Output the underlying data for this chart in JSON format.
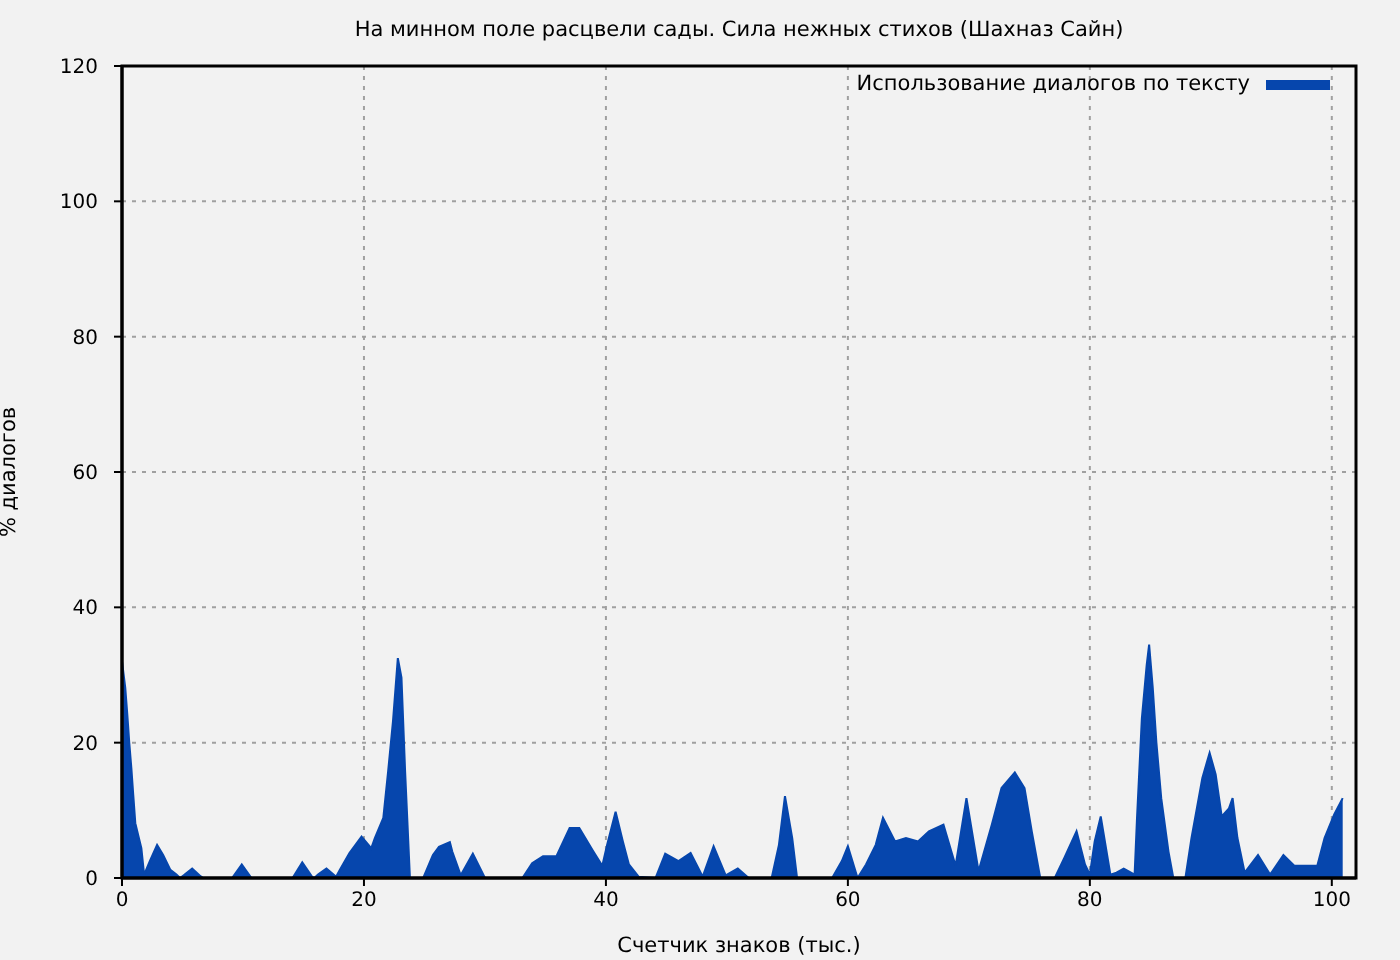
{
  "chart_data": {
    "type": "area",
    "title": "На минном поле расцвели сады. Сила нежных стихов (Шахназ Сайн)",
    "xlabel": "Счетчик знаков (тыс.)",
    "ylabel": "% диалогов",
    "x": [
      0,
      0.27,
      0.44,
      0.6,
      0.77,
      0.93,
      1.1,
      1.37,
      1.6,
      1.8,
      1.9,
      2.3,
      2.9,
      3.4,
      4.0,
      4.5,
      4.8,
      5.1,
      5.8,
      6.4,
      6.7,
      9.1,
      9.9,
      10.7,
      14.1,
      14.9,
      15.7,
      15.9,
      16.2,
      16.9,
      17.7,
      18,
      18.8,
      19.8,
      20.6,
      20.9,
      21.6,
      22,
      22.4,
      22.8,
      23.1,
      23.4,
      23.6,
      23.8,
      24.9,
      25.7,
      26.2,
      27.1,
      27.3,
      28,
      29,
      30,
      33.1,
      33.9,
      34.8,
      35.9,
      37,
      37.8,
      38.9,
      39.7,
      40.1,
      40.8,
      41.4,
      41.9,
      42.7,
      44.1,
      44.9,
      46,
      47,
      48,
      48.9,
      49.9,
      50.9,
      51.8,
      53.7,
      54.3,
      54.8,
      55.4,
      55.8,
      58.7,
      59.5,
      60,
      60.8,
      61.5,
      62.3,
      62.9,
      63.9,
      64.8,
      65.8,
      66.7,
      67.9,
      68.9,
      69.8,
      70.8,
      71.9,
      72.7,
      73.8,
      74.6,
      75.2,
      75.9,
      77.1,
      77.9,
      78.9,
      79.6,
      80,
      80.4,
      80.9,
      81.7,
      82.2,
      82.8,
      83.7,
      83.9,
      84.3,
      84.7,
      84.9,
      85.2,
      85.5,
      85.9,
      86.5,
      86.9,
      87.9,
      88.4,
      89.3,
      89.9,
      90.4,
      90.9,
      91.5,
      91.8,
      92.2,
      92.8,
      93.9,
      94.9,
      96,
      96.9,
      98.8,
      99.4,
      100.2,
      100.9
    ],
    "series": [
      {
        "name": "Использование диалогов по тексту",
        "color": "#0646ad",
        "values": [
          32,
          28.1,
          24.1,
          20,
          16.3,
          12.3,
          8.1,
          6.1,
          4.4,
          1,
          0.8,
          2.5,
          4.9,
          3.4,
          1.2,
          0.5,
          0,
          0.4,
          1.4,
          0.4,
          0,
          0,
          2,
          0,
          0,
          2.3,
          0.2,
          0,
          0.5,
          1.4,
          0.2,
          1.2,
          3.7,
          6.1,
          4.4,
          5.9,
          8.9,
          15.8,
          23.2,
          32.5,
          29.6,
          15.8,
          7.9,
          0,
          0,
          3.4,
          4.6,
          5.3,
          3.9,
          0.4,
          3.6,
          0,
          0,
          2.2,
          3.2,
          3.2,
          7.4,
          7.4,
          4.1,
          1.8,
          4.9,
          9.8,
          5.4,
          2,
          0.2,
          0,
          3.6,
          2.5,
          3.7,
          0.2,
          4.7,
          0.4,
          1.4,
          0,
          0,
          4.9,
          12.1,
          5.9,
          0,
          0,
          2.5,
          4.7,
          0,
          2,
          4.9,
          8.9,
          5.4,
          5.9,
          5.4,
          6.9,
          7.9,
          1.8,
          11.8,
          1,
          7.9,
          13.3,
          15.6,
          13.3,
          6.9,
          0,
          0,
          3,
          6.9,
          2,
          0.5,
          5.4,
          9.1,
          0.5,
          0.8,
          1.4,
          0.5,
          8.9,
          23.6,
          31.5,
          34.5,
          28.1,
          20,
          11.8,
          3.9,
          0,
          0,
          5.9,
          14.8,
          18.5,
          15.3,
          9.1,
          10.3,
          11.8,
          5.9,
          0.8,
          3.4,
          0.5,
          3.4,
          1.8,
          1.8,
          5.9,
          9.4,
          11.8
        ]
      }
    ],
    "xlim": [
      0,
      102
    ],
    "ylim": [
      0,
      120
    ],
    "xticks": [
      0,
      20,
      40,
      60,
      80,
      100
    ],
    "yticks": [
      0,
      20,
      40,
      60,
      80,
      100,
      120
    ],
    "grid": true,
    "legend": "top right"
  }
}
